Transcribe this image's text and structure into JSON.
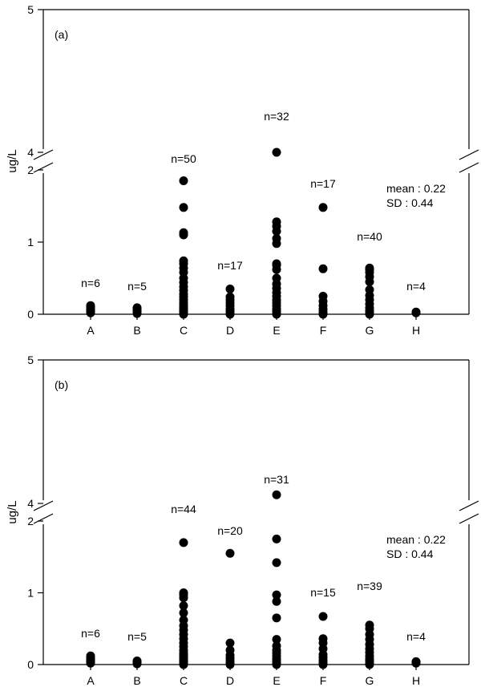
{
  "chart_data": [
    {
      "type": "scatter",
      "panel_label": "(a)",
      "ylabel": "ug/L",
      "categories": [
        "A",
        "B",
        "C",
        "D",
        "E",
        "F",
        "G",
        "H"
      ],
      "y_ticks": [
        "0",
        "1",
        "2",
        "4",
        "5"
      ],
      "ylim_lower": [
        0,
        2
      ],
      "ylim_upper": [
        4,
        5
      ],
      "axis_break": true,
      "n_labels": [
        "n=6",
        "n=5",
        "n=50",
        "n=17",
        "n=32",
        "n=17",
        "n=40",
        "n=4"
      ],
      "stats": {
        "mean": "mean : 0.22",
        "sd": "SD : 0.44"
      },
      "points": [
        [
          0.02,
          0.04,
          0.06,
          0.08,
          0.1,
          0.12
        ],
        [
          0.01,
          0.03,
          0.05,
          0.07,
          0.09
        ],
        [
          0.0,
          0.02,
          0.04,
          0.06,
          0.08,
          0.1,
          0.13,
          0.16,
          0.2,
          0.24,
          0.28,
          0.33,
          0.38,
          0.44,
          0.5,
          0.58,
          0.64,
          0.7,
          0.74,
          1.1,
          1.13,
          1.48,
          1.85
        ],
        [
          0.0,
          0.02,
          0.05,
          0.08,
          0.12,
          0.16,
          0.2,
          0.24,
          0.35
        ],
        [
          0.0,
          0.02,
          0.05,
          0.08,
          0.12,
          0.16,
          0.2,
          0.25,
          0.3,
          0.36,
          0.42,
          0.5,
          0.62,
          0.68,
          0.7,
          0.98,
          1.05,
          1.15,
          1.22,
          1.28,
          4.0
        ],
        [
          0.0,
          0.03,
          0.07,
          0.12,
          0.18,
          0.25,
          0.63,
          1.48
        ],
        [
          0.0,
          0.02,
          0.05,
          0.09,
          0.14,
          0.2,
          0.26,
          0.34,
          0.45,
          0.52,
          0.58,
          0.62,
          0.64
        ],
        [
          0.02,
          0.03
        ]
      ]
    },
    {
      "type": "scatter",
      "panel_label": "(b)",
      "ylabel": "ug/L",
      "categories": [
        "A",
        "B",
        "C",
        "D",
        "E",
        "F",
        "G",
        "H"
      ],
      "y_ticks": [
        "0",
        "1",
        "2",
        "4",
        "5"
      ],
      "ylim_lower": [
        0,
        2
      ],
      "ylim_upper": [
        4,
        5
      ],
      "axis_break": true,
      "n_labels": [
        "n=6",
        "n=5",
        "n=44",
        "n=20",
        "n=31",
        "n=15",
        "n=39",
        "n=4"
      ],
      "stats": {
        "mean": "mean : 0.22",
        "sd": "SD : 0.44"
      },
      "points": [
        [
          0.02,
          0.04,
          0.06,
          0.08,
          0.1,
          0.12
        ],
        [
          0.01,
          0.02,
          0.03,
          0.04,
          0.05
        ],
        [
          0.0,
          0.02,
          0.04,
          0.06,
          0.08,
          0.1,
          0.13,
          0.16,
          0.2,
          0.25,
          0.3,
          0.36,
          0.42,
          0.48,
          0.54,
          0.62,
          0.72,
          0.82,
          0.93,
          0.97,
          1.0,
          1.7
        ],
        [
          0.0,
          0.02,
          0.05,
          0.09,
          0.13,
          0.2,
          0.3,
          1.55
        ],
        [
          0.0,
          0.02,
          0.05,
          0.08,
          0.12,
          0.16,
          0.2,
          0.26,
          0.35,
          0.65,
          0.88,
          0.97,
          1.42,
          1.75,
          4.06
        ],
        [
          0.0,
          0.03,
          0.06,
          0.1,
          0.14,
          0.22,
          0.3,
          0.36,
          0.67
        ],
        [
          0.0,
          0.02,
          0.05,
          0.08,
          0.12,
          0.17,
          0.22,
          0.28,
          0.35,
          0.42,
          0.5,
          0.55
        ],
        [
          0.02,
          0.03,
          0.04
        ]
      ]
    }
  ]
}
